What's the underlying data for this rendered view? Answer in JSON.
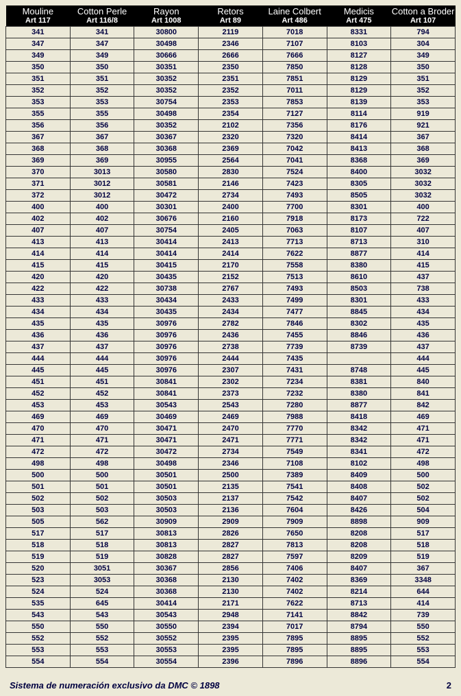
{
  "table": {
    "columns": [
      {
        "top": "Mouline",
        "sub": "Art 117"
      },
      {
        "top": "Cotton Perle",
        "sub": "Art 116/8"
      },
      {
        "top": "Rayon",
        "sub": "Art 1008"
      },
      {
        "top": "Retors",
        "sub": "Art 89"
      },
      {
        "top": "Laine Colbert",
        "sub": "Art 486"
      },
      {
        "top": "Medicis",
        "sub": "Art 475"
      },
      {
        "top": "Cotton a Broder",
        "sub": "Art 107"
      }
    ],
    "rows": [
      [
        "341",
        "341",
        "30800",
        "2119",
        "7018",
        "8331",
        "794"
      ],
      [
        "347",
        "347",
        "30498",
        "2346",
        "7107",
        "8103",
        "304"
      ],
      [
        "349",
        "349",
        "30666",
        "2666",
        "7666",
        "8127",
        "349"
      ],
      [
        "350",
        "350",
        "30351",
        "2350",
        "7850",
        "8128",
        "350"
      ],
      [
        "351",
        "351",
        "30352",
        "2351",
        "7851",
        "8129",
        "351"
      ],
      [
        "352",
        "352",
        "30352",
        "2352",
        "7011",
        "8129",
        "352"
      ],
      [
        "353",
        "353",
        "30754",
        "2353",
        "7853",
        "8139",
        "353"
      ],
      [
        "355",
        "355",
        "30498",
        "2354",
        "7127",
        "8114",
        "919"
      ],
      [
        "356",
        "356",
        "30352",
        "2102",
        "7356",
        "8176",
        "921"
      ],
      [
        "367",
        "367",
        "30367",
        "2320",
        "7320",
        "8414",
        "367"
      ],
      [
        "368",
        "368",
        "30368",
        "2369",
        "7042",
        "8413",
        "368"
      ],
      [
        "369",
        "369",
        "30955",
        "2564",
        "7041",
        "8368",
        "369"
      ],
      [
        "370",
        "3013",
        "30580",
        "2830",
        "7524",
        "8400",
        "3032"
      ],
      [
        "371",
        "3012",
        "30581",
        "2146",
        "7423",
        "8305",
        "3032"
      ],
      [
        "372",
        "3012",
        "30472",
        "2734",
        "7493",
        "8505",
        "3032"
      ],
      [
        "400",
        "400",
        "30301",
        "2400",
        "7700",
        "8301",
        "400"
      ],
      [
        "402",
        "402",
        "30676",
        "2160",
        "7918",
        "8173",
        "722"
      ],
      [
        "407",
        "407",
        "30754",
        "2405",
        "7063",
        "8107",
        "407"
      ],
      [
        "413",
        "413",
        "30414",
        "2413",
        "7713",
        "8713",
        "310"
      ],
      [
        "414",
        "414",
        "30414",
        "2414",
        "7622",
        "8877",
        "414"
      ],
      [
        "415",
        "415",
        "30415",
        "2170",
        "7558",
        "8380",
        "415"
      ],
      [
        "420",
        "420",
        "30435",
        "2152",
        "7513",
        "8610",
        "437"
      ],
      [
        "422",
        "422",
        "30738",
        "2767",
        "7493",
        "8503",
        "738"
      ],
      [
        "433",
        "433",
        "30434",
        "2433",
        "7499",
        "8301",
        "433"
      ],
      [
        "434",
        "434",
        "30435",
        "2434",
        "7477",
        "8845",
        "434"
      ],
      [
        "435",
        "435",
        "30976",
        "2782",
        "7846",
        "8302",
        "435"
      ],
      [
        "436",
        "436",
        "30976",
        "2436",
        "7455",
        "8846",
        "436"
      ],
      [
        "437",
        "437",
        "30976",
        "2738",
        "7739",
        "8739",
        "437"
      ],
      [
        "444",
        "444",
        "30976",
        "2444",
        "7435",
        "",
        "444"
      ],
      [
        "445",
        "445",
        "30976",
        "2307",
        "7431",
        "8748",
        "445"
      ],
      [
        "451",
        "451",
        "30841",
        "2302",
        "7234",
        "8381",
        "840"
      ],
      [
        "452",
        "452",
        "30841",
        "2373",
        "7232",
        "8380",
        "841"
      ],
      [
        "453",
        "453",
        "30543",
        "2543",
        "7280",
        "8877",
        "842"
      ],
      [
        "469",
        "469",
        "30469",
        "2469",
        "7988",
        "8418",
        "469"
      ],
      [
        "470",
        "470",
        "30471",
        "2470",
        "7770",
        "8342",
        "471"
      ],
      [
        "471",
        "471",
        "30471",
        "2471",
        "7771",
        "8342",
        "471"
      ],
      [
        "472",
        "472",
        "30472",
        "2734",
        "7549",
        "8341",
        "472"
      ],
      [
        "498",
        "498",
        "30498",
        "2346",
        "7108",
        "8102",
        "498"
      ],
      [
        "500",
        "500",
        "30501",
        "2500",
        "7389",
        "8409",
        "500"
      ],
      [
        "501",
        "501",
        "30501",
        "2135",
        "7541",
        "8408",
        "502"
      ],
      [
        "502",
        "502",
        "30503",
        "2137",
        "7542",
        "8407",
        "502"
      ],
      [
        "503",
        "503",
        "30503",
        "2136",
        "7604",
        "8426",
        "504"
      ],
      [
        "505",
        "562",
        "30909",
        "2909",
        "7909",
        "8898",
        "909"
      ],
      [
        "517",
        "517",
        "30813",
        "2826",
        "7650",
        "8208",
        "517"
      ],
      [
        "518",
        "518",
        "30813",
        "2827",
        "7813",
        "8208",
        "518"
      ],
      [
        "519",
        "519",
        "30828",
        "2827",
        "7597",
        "8209",
        "519"
      ],
      [
        "520",
        "3051",
        "30367",
        "2856",
        "7406",
        "8407",
        "367"
      ],
      [
        "523",
        "3053",
        "30368",
        "2130",
        "7402",
        "8369",
        "3348"
      ],
      [
        "524",
        "524",
        "30368",
        "2130",
        "7402",
        "8214",
        "644"
      ],
      [
        "535",
        "645",
        "30414",
        "2171",
        "7622",
        "8713",
        "414"
      ],
      [
        "543",
        "543",
        "30543",
        "2948",
        "7141",
        "8842",
        "739"
      ],
      [
        "550",
        "550",
        "30550",
        "2394",
        "7017",
        "8794",
        "550"
      ],
      [
        "552",
        "552",
        "30552",
        "2395",
        "7895",
        "8895",
        "552"
      ],
      [
        "553",
        "553",
        "30553",
        "2395",
        "7895",
        "8895",
        "553"
      ],
      [
        "554",
        "554",
        "30554",
        "2396",
        "7896",
        "8896",
        "554"
      ]
    ]
  },
  "footer": {
    "text": "Sistema de numeración exclusivo da DMC © 1898",
    "page": "2"
  }
}
